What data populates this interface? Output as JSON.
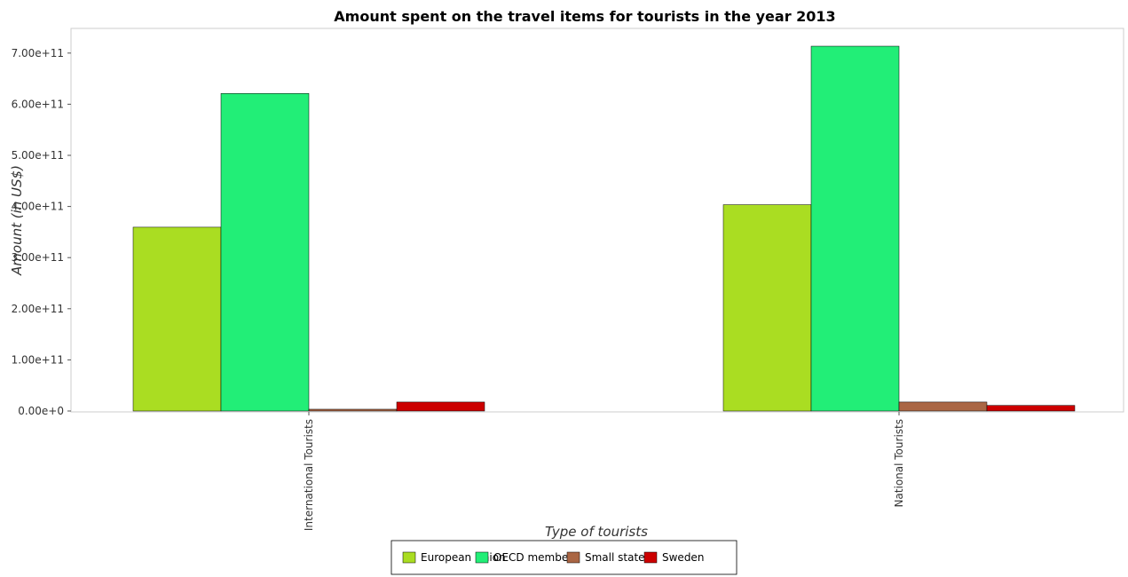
{
  "chart_data": {
    "type": "bar",
    "title": "Amount spent on the travel items for tourists in the year 2013",
    "xlabel": "Type of tourists",
    "ylabel": "Amount (in US$)",
    "categories": [
      "International Tourists",
      "National Tourists"
    ],
    "series": [
      {
        "name": "European Union",
        "color": "#aadd22",
        "values": [
          359500000000,
          403500000000
        ]
      },
      {
        "name": "OECD members",
        "color": "#22ee77",
        "values": [
          621000000000,
          713500000000
        ]
      },
      {
        "name": "Small states",
        "color": "#aa6644",
        "values": [
          3500000000,
          17500000000
        ]
      },
      {
        "name": "Sweden",
        "color": "#cc0000",
        "values": [
          17500000000,
          11000000000
        ]
      }
    ],
    "ylim": [
      0,
      750000000000
    ],
    "yticks": [
      {
        "value": 0,
        "label": "0.00e+0"
      },
      {
        "value": 100000000000,
        "label": "1.00e+11"
      },
      {
        "value": 200000000000,
        "label": "2.00e+11"
      },
      {
        "value": 300000000000,
        "label": "3.00e+11"
      },
      {
        "value": 400000000000,
        "label": "4.00e+11"
      },
      {
        "value": 500000000000,
        "label": "5.00e+11"
      },
      {
        "value": 600000000000,
        "label": "6.00e+11"
      },
      {
        "value": 700000000000,
        "label": "7.00e+11"
      }
    ],
    "grid": false,
    "legend_position": "bottom-center"
  }
}
